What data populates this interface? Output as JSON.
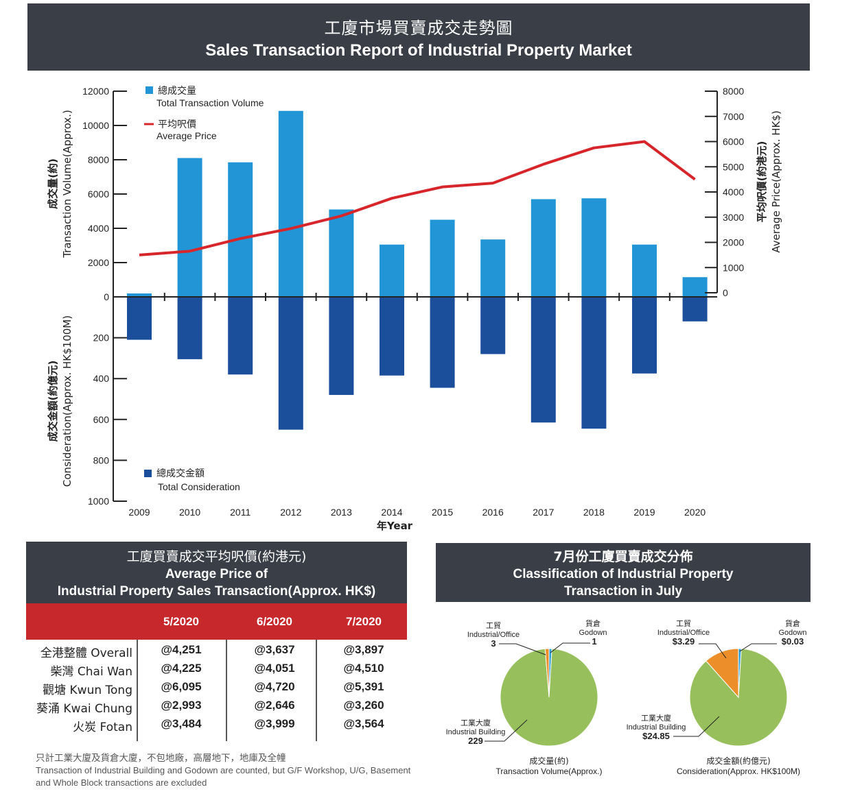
{
  "header": {
    "title_zh": "工廈市場買賣成交走勢圖",
    "title_en": "Sales Transaction Report of Industrial Property Market"
  },
  "chart_data": [
    {
      "type": "bar",
      "title": "Sales Transaction Report of Industrial Property Market",
      "xlabel": "年Year",
      "categories": [
        "2009",
        "2010",
        "2011",
        "2012",
        "2013",
        "2014",
        "2015",
        "2016",
        "2017",
        "2018",
        "2019",
        "2020"
      ],
      "left_axis_top": {
        "label_zh": "成交量(約)",
        "label_en": "Transaction Volume(Approx.)",
        "ticks": [
          "12000",
          "10000",
          "8000",
          "6000",
          "4000",
          "2000",
          "0"
        ],
        "ylim": [
          0,
          12000
        ]
      },
      "left_axis_bottom": {
        "label_zh": "成交金額(約億元)",
        "label_en": "Consideration(Approx. HK$100M)",
        "ticks": [
          "200",
          "400",
          "600",
          "800",
          "1000"
        ],
        "ylim": [
          0,
          1000
        ]
      },
      "right_axis": {
        "label_zh": "平均呎價(約港元)",
        "label_en": "Average Price(Approx. HK$)",
        "ticks": [
          "8000",
          "7000",
          "6000",
          "5000",
          "4000",
          "3000",
          "2000",
          "1000",
          "0"
        ],
        "ylim": [
          0,
          8000
        ]
      },
      "series": [
        {
          "name": "Total Transaction Volume",
          "name_zh": "總成交量",
          "type": "bar",
          "axis": "left_top",
          "color": "#2195d5",
          "values": [
            200,
            8100,
            7850,
            10850,
            5100,
            3050,
            4500,
            3350,
            5700,
            5750,
            3050,
            1150
          ]
        },
        {
          "name": "Average Price",
          "name_zh": "平均呎價",
          "type": "line",
          "axis": "right",
          "color": "#d7262b",
          "values": [
            1500,
            1650,
            2150,
            2550,
            3050,
            3750,
            4200,
            4350,
            5100,
            5750,
            6000,
            4500
          ]
        },
        {
          "name": "Total Consideration",
          "name_zh": "總成交金額",
          "type": "bar",
          "axis": "left_bottom",
          "color": "#1b4f9c",
          "values": [
            210,
            305,
            380,
            650,
            480,
            385,
            445,
            280,
            615,
            645,
            375,
            120
          ]
        }
      ],
      "legend": "top-left"
    },
    {
      "type": "pie",
      "title": "成交量(約)",
      "subtitle": "Transaction Volume(Approx.)",
      "slices": [
        {
          "name_zh": "工業大廈",
          "name": "Industrial Building",
          "value": 229,
          "label": "229",
          "color": "#97c05c"
        },
        {
          "name_zh": "工貿",
          "name": "Industrial/Office",
          "value": 3,
          "label": "3",
          "color": "#ec8f2b"
        },
        {
          "name_zh": "貨倉",
          "name": "Godown",
          "value": 1,
          "label": "1",
          "color": "#2a9fd8"
        }
      ]
    },
    {
      "type": "pie",
      "title": "成交金額(約億元)",
      "subtitle": "Consideration(Approx. HK$100M)",
      "slices": [
        {
          "name_zh": "工業大廈",
          "name": "Industrial Building",
          "value": 24.85,
          "label": "$24.85",
          "color": "#97c05c"
        },
        {
          "name_zh": "工貿",
          "name": "Industrial/Office",
          "value": 3.29,
          "label": "$3.29",
          "color": "#ec8f2b"
        },
        {
          "name_zh": "貨倉",
          "name": "Godown",
          "value": 0.03,
          "label": "$0.03",
          "color": "#2a9fd8"
        }
      ]
    }
  ],
  "price_table": {
    "title_zh": "工廈買賣成交平均呎價(約港元)",
    "title_en_1": "Average Price of",
    "title_en_2": "Industrial Property Sales Transaction(Approx. HK$)",
    "columns": [
      "5/2020",
      "6/2020",
      "7/2020"
    ],
    "rows": [
      {
        "location": "全港整體 Overall",
        "values": [
          "@4,251",
          "@3,637",
          "@3,897"
        ]
      },
      {
        "location": "柴灣 Chai Wan",
        "values": [
          "@4,225",
          "@4,051",
          "@4,510"
        ]
      },
      {
        "location": "觀塘 Kwun Tong",
        "values": [
          "@6,095",
          "@4,720",
          "@5,391"
        ]
      },
      {
        "location": "葵涌 Kwai Chung",
        "values": [
          "@2,993",
          "@2,646",
          "@3,260"
        ]
      },
      {
        "location": "火炭 Fotan",
        "values": [
          "@3,484",
          "@3,999",
          "@3,564"
        ]
      }
    ]
  },
  "footnote": {
    "zh": "只計工業大廈及貨倉大廈，不包地廠，高層地下，地庫及全幢",
    "en": "Transaction of Industrial Building and Godown are counted, but G/F Workshop, U/G, Basement and Whole Block transactions are excluded"
  },
  "pie_section": {
    "title_zh": "7月份工廈買賣成交分佈",
    "title_en_1": "Classification of Industrial Property",
    "title_en_2": "Transaction in July"
  }
}
